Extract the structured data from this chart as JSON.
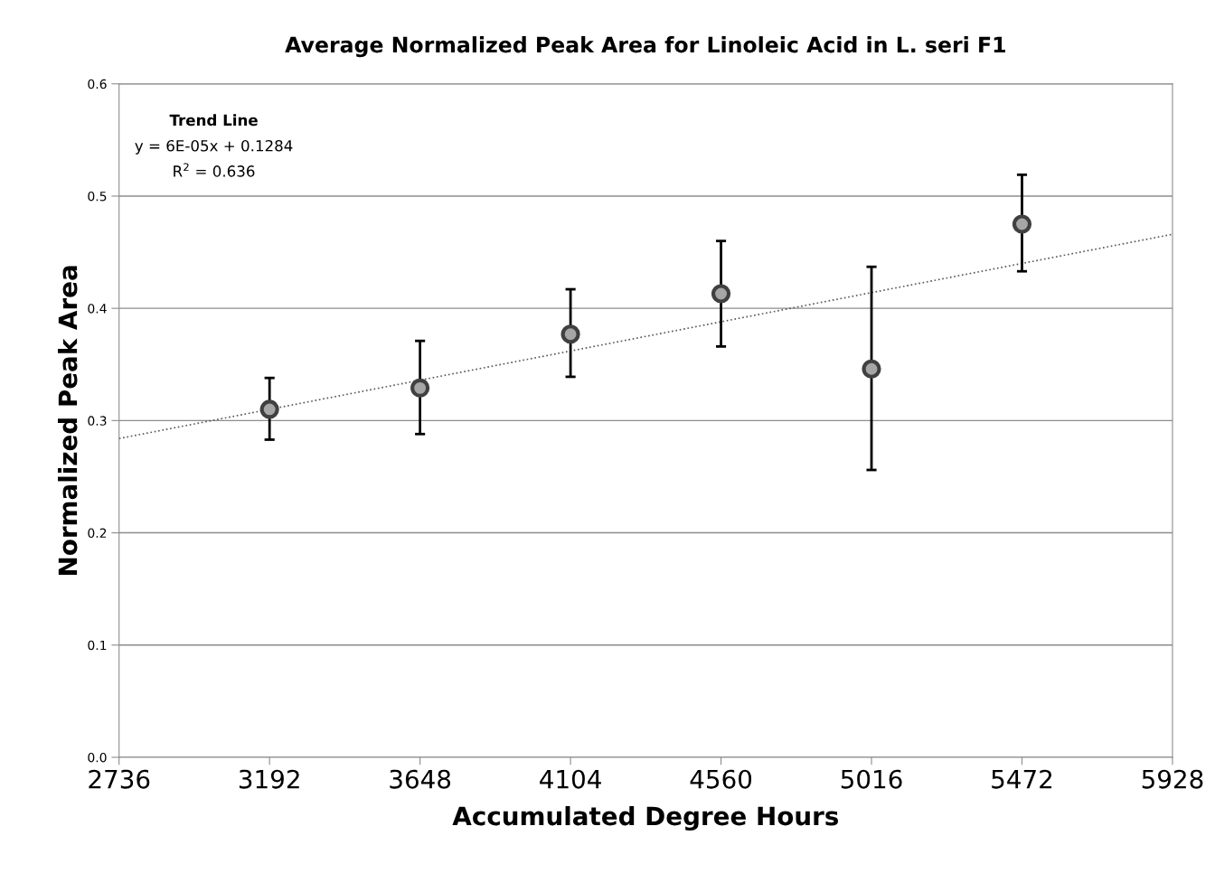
{
  "chart_data": {
    "type": "scatter",
    "title": "Average Normalized Peak Area for Linoleic Acid in L. seri F1",
    "xlabel": "Accumulated Degree Hours",
    "ylabel": "Normalized Peak Area",
    "xlim": [
      2736,
      5928
    ],
    "xticks": [
      2736,
      3192,
      3648,
      4104,
      4560,
      5016,
      5472,
      5928
    ],
    "ylim": [
      0,
      0.6
    ],
    "yticks": [
      {
        "value": 0,
        "label": "0.0"
      },
      0.1,
      0.2,
      0.3,
      0.4,
      0.5,
      0.6
    ],
    "grid": "y",
    "legend": false,
    "series": [
      {
        "color": "#a6a6a6",
        "marker": "circle",
        "x": [
          3192,
          3648,
          4104,
          4560,
          5016,
          5472
        ],
        "values": [
          0.31,
          0.329,
          0.377,
          0.413,
          0.346,
          0.475
        ],
        "errors": [
          [
            0.283,
            0.338
          ],
          [
            0.288,
            0.371
          ],
          [
            0.339,
            0.417
          ],
          [
            0.366,
            0.46
          ],
          [
            0.256,
            0.437
          ],
          [
            0.433,
            0.519
          ]
        ]
      },
      {
        "type": "line",
        "color": "#595959",
        "marker": "none",
        "line_style": "dotted",
        "x": [
          2736,
          5928
        ],
        "values": [
          0.284,
          0.466
        ]
      }
    ],
    "annotations": [
      "Trend Line",
      "y = 6E-05x + 0.1284",
      "R$^{2}$ = 0.636"
    ]
  }
}
